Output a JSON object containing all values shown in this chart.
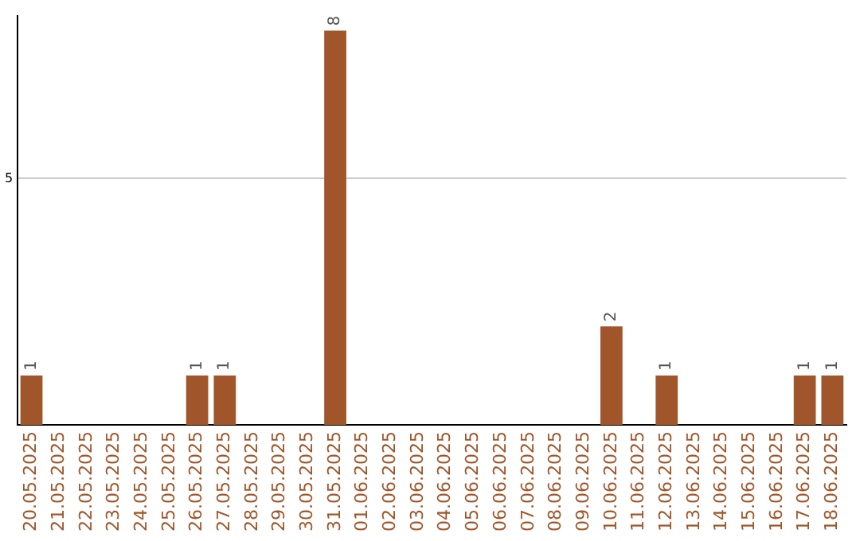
{
  "chart_data": {
    "type": "bar",
    "categories": [
      "20.05.2025",
      "21.05.2025",
      "22.05.2025",
      "23.05.2025",
      "24.05.2025",
      "25.05.2025",
      "26.05.2025",
      "27.05.2025",
      "28.05.2025",
      "29.05.2025",
      "30.05.2025",
      "31.05.2025",
      "01.06.2025",
      "02.06.2025",
      "03.06.2025",
      "04.06.2025",
      "05.06.2025",
      "06.06.2025",
      "07.06.2025",
      "08.06.2025",
      "09.06.2025",
      "10.06.2025",
      "11.06.2025",
      "12.06.2025",
      "13.06.2025",
      "14.06.2025",
      "15.06.2025",
      "16.06.2025",
      "17.06.2025",
      "18.06.2025"
    ],
    "values": [
      1,
      0,
      0,
      0,
      0,
      0,
      1,
      1,
      0,
      0,
      0,
      8,
      0,
      0,
      0,
      0,
      0,
      0,
      0,
      0,
      0,
      2,
      0,
      1,
      0,
      0,
      0,
      0,
      1,
      1
    ],
    "value_labels": [
      "1",
      null,
      null,
      null,
      null,
      null,
      "1",
      "1",
      null,
      null,
      null,
      "8",
      null,
      null,
      null,
      null,
      null,
      null,
      null,
      null,
      null,
      "2",
      null,
      "1",
      null,
      null,
      null,
      null,
      "1",
      "1"
    ],
    "color": "#a0562a",
    "ylim": [
      0,
      8.3
    ],
    "yticks": [
      5
    ],
    "grid": "y"
  }
}
